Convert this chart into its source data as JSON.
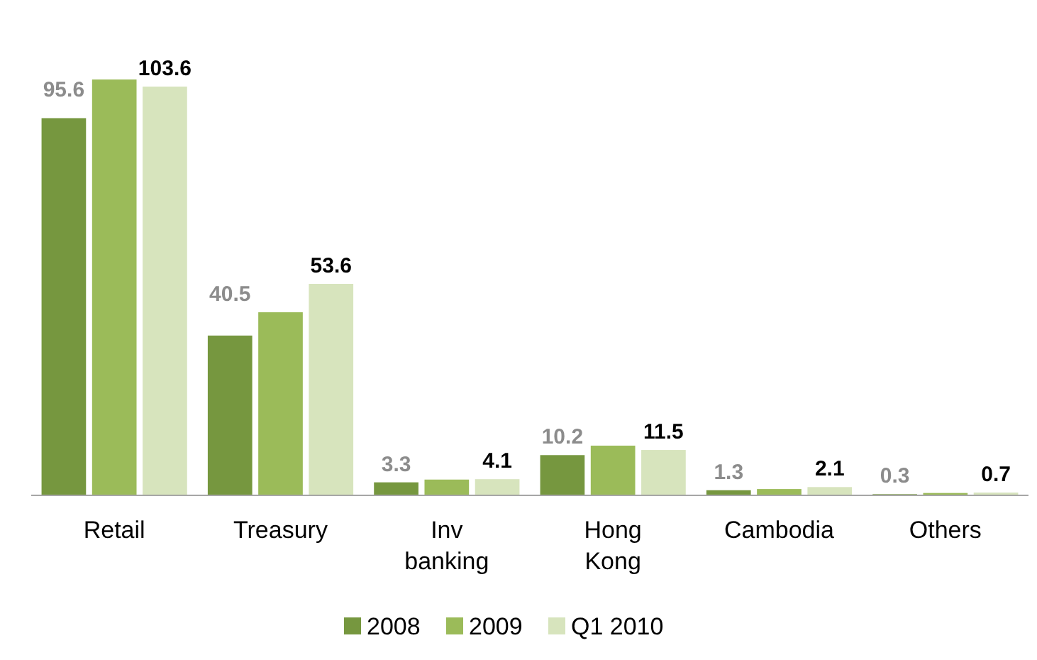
{
  "chart_data": {
    "type": "bar",
    "categories": [
      "Retail",
      "Treasury",
      "Inv banking",
      "Hong Kong",
      "Cambodia",
      "Others"
    ],
    "series": [
      {
        "name": "2008",
        "color": "#76973f",
        "values": [
          95.6,
          40.5,
          3.3,
          10.2,
          1.3,
          0.3
        ],
        "value_labels": [
          "95.6",
          "40.5",
          "3.3",
          "10.2",
          "1.3",
          "0.3"
        ]
      },
      {
        "name": "2009",
        "color": "#9bbb59",
        "values": [
          105.4,
          46.4,
          4.0,
          12.6,
          1.6,
          0.6
        ]
      },
      {
        "name": "Q1 2010",
        "color": "#d7e4bd",
        "values": [
          103.6,
          53.6,
          4.1,
          11.5,
          2.1,
          0.7
        ],
        "value_labels": [
          "103.6",
          "53.6",
          "4.1",
          "11.5",
          "2.1",
          "0.7"
        ]
      }
    ],
    "legend": "bottom"
  }
}
